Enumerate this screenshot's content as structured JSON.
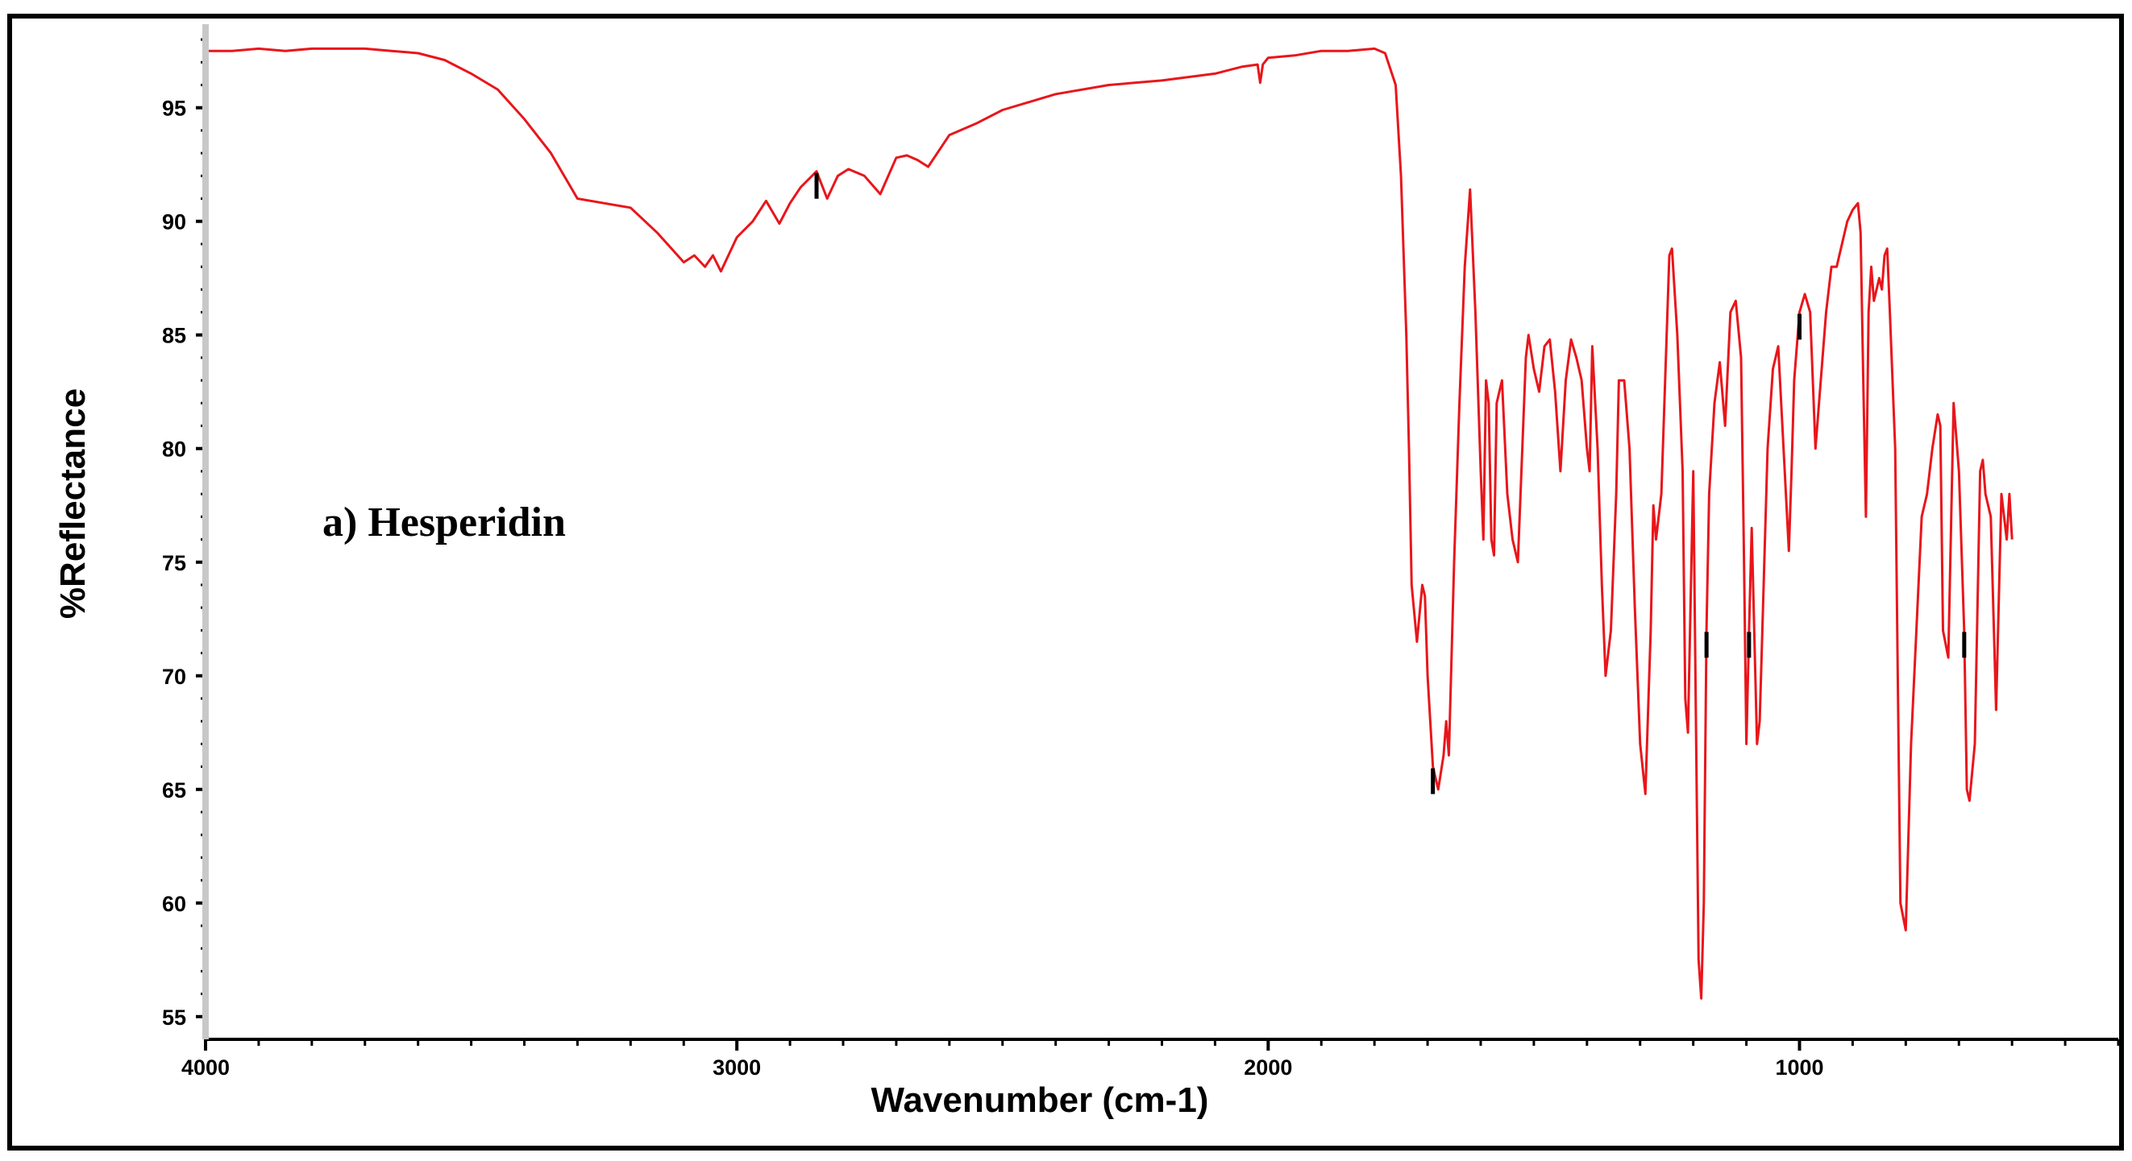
{
  "chart_data": {
    "type": "line",
    "title": "",
    "annotation": "a) Hesperidin",
    "xlabel": "Wavenumber (cm-1)",
    "ylabel": "%Reflectance",
    "xlim": [
      4000,
      400
    ],
    "ylim": [
      54,
      98.5
    ],
    "x_reversed": true,
    "grid": false,
    "legend": "none",
    "x_ticks": [
      4000,
      3000,
      2000,
      1000
    ],
    "y_ticks": [
      55,
      60,
      65,
      70,
      75,
      80,
      85,
      90,
      95
    ],
    "x_tick_labels": [
      "4000",
      "3000",
      "2000",
      "1000"
    ],
    "y_tick_labels": [
      "55",
      "60",
      "65",
      "70",
      "75",
      "80",
      "85",
      "90",
      "95"
    ],
    "line_color": "#e8161b",
    "marker_color": "#000000",
    "series": [
      {
        "x": [
          4000,
          3950,
          3900,
          3850,
          3800,
          3750,
          3700,
          3650,
          3600,
          3550,
          3500,
          3450,
          3400,
          3350,
          3300,
          3250,
          3200,
          3150,
          3100,
          3080,
          3060,
          3045,
          3030,
          3000,
          2970,
          2945,
          2920,
          2900,
          2880,
          2850,
          2830,
          2810,
          2790,
          2760,
          2730,
          2715,
          2700,
          2680,
          2660,
          2640,
          2600,
          2550,
          2500,
          2400,
          2300,
          2200,
          2100,
          2050,
          2020,
          2015,
          2010,
          2000,
          1950,
          1900,
          1850,
          1800,
          1780,
          1760,
          1750,
          1740,
          1735,
          1730,
          1720,
          1710,
          1705,
          1700,
          1690,
          1680,
          1670,
          1665,
          1660,
          1650,
          1640,
          1630,
          1620,
          1610,
          1600,
          1595,
          1590,
          1585,
          1580,
          1575,
          1570,
          1560,
          1550,
          1540,
          1530,
          1515,
          1510,
          1500,
          1490,
          1480,
          1470,
          1460,
          1450,
          1440,
          1430,
          1420,
          1410,
          1400,
          1395,
          1390,
          1380,
          1372,
          1365,
          1355,
          1345,
          1340,
          1330,
          1320,
          1310,
          1300,
          1290,
          1280,
          1275,
          1270,
          1260,
          1250,
          1245,
          1240,
          1230,
          1220,
          1215,
          1210,
          1200,
          1195,
          1190,
          1185,
          1180,
          1175,
          1170,
          1160,
          1150,
          1140,
          1130,
          1120,
          1110,
          1105,
          1100,
          1095,
          1090,
          1080,
          1075,
          1070,
          1060,
          1050,
          1040,
          1030,
          1020,
          1015,
          1010,
          1000,
          990,
          980,
          975,
          970,
          960,
          950,
          940,
          930,
          920,
          910,
          900,
          890,
          885,
          880,
          875,
          870,
          865,
          860,
          850,
          845,
          840,
          835,
          830,
          820,
          815,
          810,
          800,
          790,
          780,
          770,
          760,
          750,
          740,
          735,
          730,
          720,
          710,
          700,
          690,
          685,
          680,
          670,
          660,
          655,
          650,
          640,
          630,
          620,
          615,
          610,
          605,
          600
        ],
        "y": [
          97.5,
          97.5,
          97.6,
          97.5,
          97.6,
          97.6,
          97.6,
          97.5,
          97.4,
          97.1,
          96.5,
          95.8,
          94.5,
          93.0,
          91.0,
          90.8,
          90.6,
          89.5,
          88.2,
          88.5,
          88.0,
          88.5,
          87.8,
          89.3,
          90.0,
          90.9,
          89.9,
          90.8,
          91.5,
          92.2,
          91.0,
          92.0,
          92.3,
          92.0,
          91.2,
          92.0,
          92.8,
          92.9,
          92.7,
          92.4,
          93.8,
          94.3,
          94.9,
          95.6,
          96.0,
          96.2,
          96.5,
          96.8,
          96.9,
          96.1,
          96.9,
          97.2,
          97.3,
          97.5,
          97.5,
          97.6,
          97.4,
          96.0,
          92.0,
          85.0,
          80.0,
          74.0,
          71.5,
          74.0,
          73.5,
          70.0,
          66.0,
          65.0,
          66.5,
          68.0,
          66.5,
          75.0,
          82.0,
          88.0,
          91.4,
          86.0,
          79.0,
          76.0,
          83.0,
          82.0,
          76.0,
          75.3,
          82.0,
          83.0,
          78.0,
          76.0,
          75.0,
          84.0,
          85.0,
          83.5,
          82.5,
          84.5,
          84.8,
          82.5,
          79.0,
          83.0,
          84.8,
          84.0,
          83.0,
          80.0,
          79.0,
          84.5,
          80.0,
          74.0,
          70.0,
          72.0,
          78.0,
          83.0,
          83.0,
          80.0,
          73.0,
          67.0,
          64.8,
          72.0,
          77.5,
          76.0,
          78.0,
          85.0,
          88.5,
          88.8,
          85.0,
          79.0,
          69.0,
          67.5,
          79.0,
          68.0,
          57.5,
          55.8,
          60.0,
          72.0,
          78.0,
          82.0,
          83.8,
          81.0,
          86.0,
          86.5,
          84.0,
          76.0,
          67.0,
          72.0,
          76.5,
          67.0,
          68.0,
          72.0,
          80.0,
          83.5,
          84.5,
          80.0,
          75.5,
          79.0,
          83.0,
          86.0,
          86.8,
          86.0,
          83.0,
          80.0,
          83.0,
          86.0,
          88.0,
          88.0,
          89.0,
          90.0,
          90.5,
          90.8,
          89.5,
          83.0,
          77.0,
          86.0,
          88.0,
          86.5,
          87.5,
          87.0,
          88.5,
          88.8,
          86.0,
          80.0,
          70.0,
          60.0,
          58.8,
          67.0,
          72.0,
          77.0,
          78.0,
          80.0,
          81.5,
          81.0,
          72.0,
          70.8,
          82.0,
          79.0,
          72.0,
          65.0,
          64.5,
          67.0,
          79.0,
          79.5,
          78.0,
          77.0,
          68.5,
          78.0,
          77.0,
          76.0,
          78.0,
          76.0
        ]
      }
    ],
    "peak_markers": [
      2850,
      1690,
      1175,
      1095,
      1000,
      690
    ]
  }
}
